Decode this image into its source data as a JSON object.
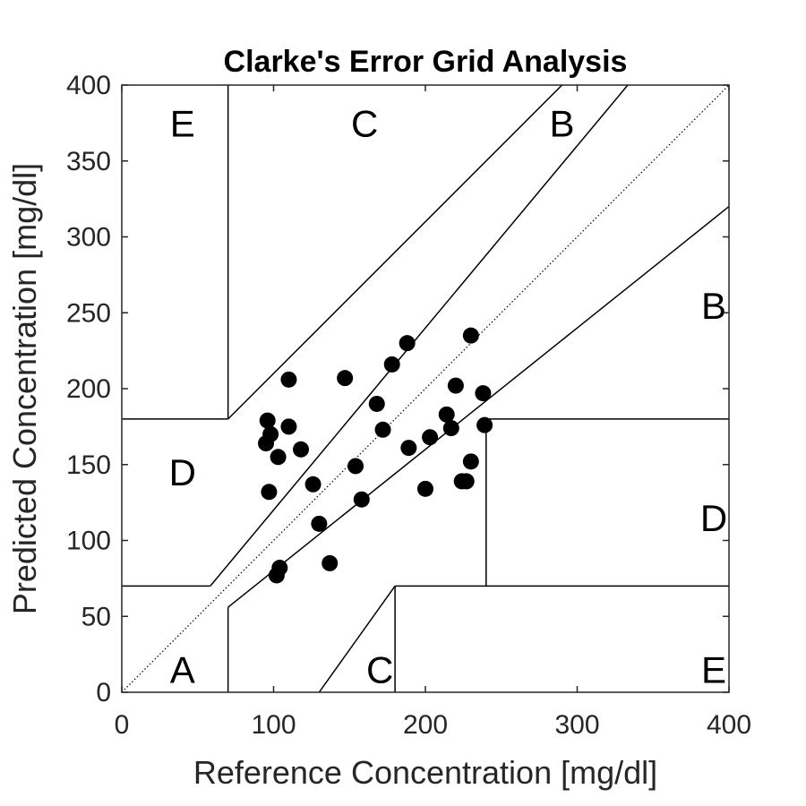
{
  "chart_data": {
    "type": "scatter",
    "title": "Clarke's Error Grid Analysis",
    "xlabel": "Reference Concentration [mg/dl]",
    "ylabel": "Predicted Concentration [mg/dl]",
    "xlim": [
      0,
      400
    ],
    "ylim": [
      0,
      400
    ],
    "xticks": [
      "0",
      "100",
      "200",
      "300",
      "400"
    ],
    "yticks": [
      "0",
      "50",
      "100",
      "150",
      "200",
      "250",
      "300",
      "350",
      "400"
    ],
    "grid": false,
    "identity_line": {
      "from": [
        0,
        0
      ],
      "to": [
        400,
        400
      ],
      "style": "dotted"
    },
    "zone_lines": [
      {
        "points": [
          [
            0,
            70
          ],
          [
            58.3,
            70
          ]
        ]
      },
      {
        "points": [
          [
            58.3,
            70
          ],
          [
            400,
            480
          ]
        ]
      },
      {
        "points": [
          [
            70,
            56
          ],
          [
            400,
            320
          ]
        ]
      },
      {
        "points": [
          [
            70,
            56
          ],
          [
            70,
            0
          ]
        ]
      },
      {
        "points": [
          [
            70,
            180
          ],
          [
            70,
            400
          ]
        ]
      },
      {
        "points": [
          [
            0,
            180
          ],
          [
            70,
            180
          ]
        ]
      },
      {
        "points": [
          [
            70,
            180
          ],
          [
            290,
            400
          ]
        ]
      },
      {
        "points": [
          [
            130,
            0
          ],
          [
            180,
            70
          ]
        ]
      },
      {
        "points": [
          [
            180,
            70
          ],
          [
            400,
            70
          ]
        ]
      },
      {
        "points": [
          [
            180,
            70
          ],
          [
            180,
            0
          ]
        ]
      },
      {
        "points": [
          [
            240,
            70
          ],
          [
            240,
            180
          ]
        ]
      },
      {
        "points": [
          [
            240,
            180
          ],
          [
            400,
            180
          ]
        ]
      }
    ],
    "zone_labels": [
      {
        "text": "E",
        "x": 40,
        "y": 375
      },
      {
        "text": "C",
        "x": 160,
        "y": 375
      },
      {
        "text": "B",
        "x": 290,
        "y": 375
      },
      {
        "text": "B",
        "x": 390,
        "y": 255
      },
      {
        "text": "D",
        "x": 40,
        "y": 145
      },
      {
        "text": "D",
        "x": 390,
        "y": 115
      },
      {
        "text": "A",
        "x": 40,
        "y": 15
      },
      {
        "text": "C",
        "x": 170,
        "y": 15
      },
      {
        "text": "E",
        "x": 390,
        "y": 15
      }
    ],
    "points": [
      {
        "x": 96,
        "y": 179
      },
      {
        "x": 98,
        "y": 170
      },
      {
        "x": 95,
        "y": 164
      },
      {
        "x": 103,
        "y": 155
      },
      {
        "x": 97,
        "y": 132
      },
      {
        "x": 110,
        "y": 175
      },
      {
        "x": 110,
        "y": 206
      },
      {
        "x": 118,
        "y": 160
      },
      {
        "x": 126,
        "y": 137
      },
      {
        "x": 130,
        "y": 111
      },
      {
        "x": 137,
        "y": 85
      },
      {
        "x": 104,
        "y": 82
      },
      {
        "x": 102,
        "y": 77
      },
      {
        "x": 147,
        "y": 207
      },
      {
        "x": 154,
        "y": 149
      },
      {
        "x": 158,
        "y": 127
      },
      {
        "x": 168,
        "y": 190
      },
      {
        "x": 172,
        "y": 173
      },
      {
        "x": 178,
        "y": 216
      },
      {
        "x": 188,
        "y": 230
      },
      {
        "x": 189,
        "y": 161
      },
      {
        "x": 200,
        "y": 134
      },
      {
        "x": 203,
        "y": 168
      },
      {
        "x": 214,
        "y": 183
      },
      {
        "x": 217,
        "y": 174
      },
      {
        "x": 220,
        "y": 202
      },
      {
        "x": 224,
        "y": 139
      },
      {
        "x": 227,
        "y": 139
      },
      {
        "x": 230,
        "y": 152
      },
      {
        "x": 230,
        "y": 235
      },
      {
        "x": 238,
        "y": 197
      },
      {
        "x": 239,
        "y": 176
      }
    ]
  }
}
